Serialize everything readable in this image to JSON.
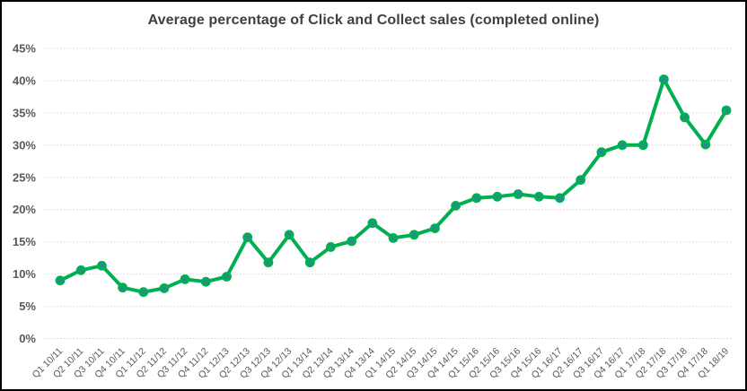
{
  "chart_data": {
    "type": "line",
    "title": "Average percentage of Click and Collect sales (completed online)",
    "categories": [
      "Q1 10/11",
      "Q2 10/11",
      "Q3 10/11",
      "Q4 10/11",
      "Q1 11/12",
      "Q2 11/12",
      "Q3 11/12",
      "Q4 11/12",
      "Q1 12/13",
      "Q2 12/13",
      "Q3 12/13",
      "Q4 12/13",
      "Q1 13/14",
      "Q2 13/14",
      "Q3 13/14",
      "Q4 13/14",
      "Q1 14/15",
      "Q2 14/15",
      "Q3 14/15",
      "Q4 14/15",
      "Q1 15/16",
      "Q2 15/16",
      "Q3 15/16",
      "Q4 15/16",
      "Q1 16/17",
      "Q2 16/17",
      "Q3 16/17",
      "Q4 16/17",
      "Q1 17/18",
      "Q2 17/18",
      "Q3 17/18",
      "Q4 17/18",
      "Q1 18/19"
    ],
    "values": [
      9.0,
      10.6,
      11.3,
      7.9,
      7.2,
      7.8,
      9.2,
      8.8,
      9.6,
      15.7,
      11.8,
      16.1,
      11.8,
      14.2,
      15.1,
      17.9,
      15.6,
      16.1,
      17.1,
      20.6,
      21.8,
      22.0,
      22.4,
      22.0,
      21.8,
      24.6,
      28.9,
      30.0,
      30.0,
      40.2,
      34.3,
      30.1,
      35.4
    ],
    "xlabel": "",
    "ylabel": "",
    "ylim": [
      0,
      45
    ],
    "ytick_step": 5,
    "ytick_labels": [
      "0%",
      "5%",
      "10%",
      "15%",
      "20%",
      "25%",
      "30%",
      "35%",
      "40%",
      "45%"
    ],
    "grid": true,
    "gridline_style": "dotted",
    "legend": "none",
    "marker": "circle-with-asterisk-center",
    "colors": {
      "line": "#00B050",
      "marker_fill": "#00B050",
      "marker_center": "#4472C4",
      "gridline": "#D6D6D6",
      "axis_text": "#595959",
      "title_text": "#404040",
      "background": "#FFFFFF",
      "border": "#000000"
    }
  }
}
